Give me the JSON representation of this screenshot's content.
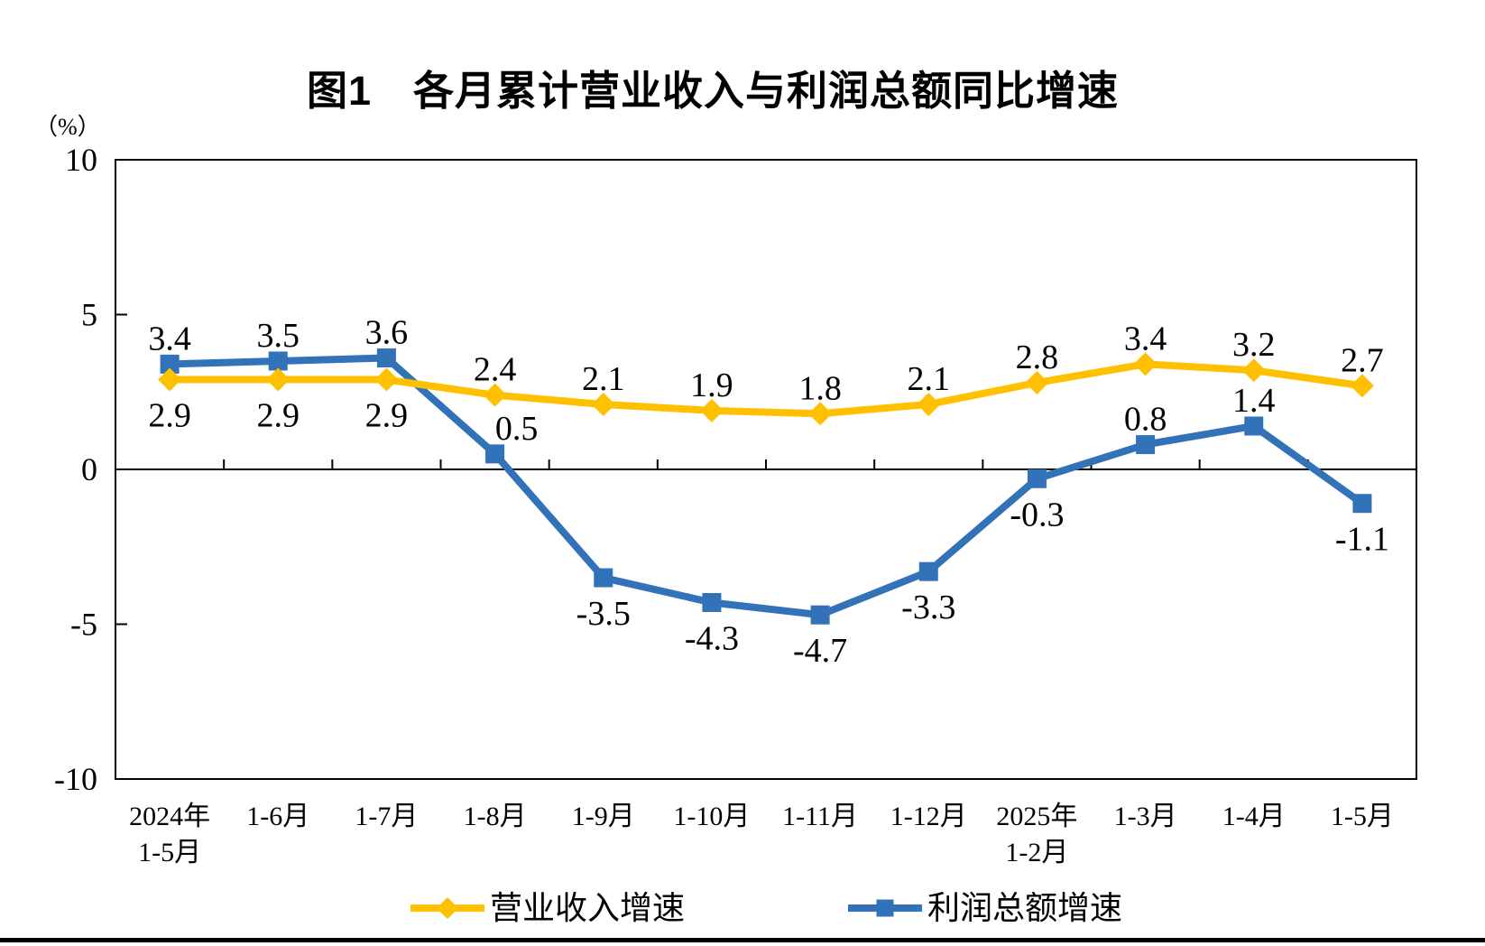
{
  "chart_data": {
    "type": "line",
    "title": "图1　各月累计营业收入与利润总额同比增速",
    "ylabel": "（%）",
    "xlabel": "",
    "ylim": [
      -10,
      10
    ],
    "yticks": [
      10,
      5,
      0,
      -5,
      -10
    ],
    "grid": false,
    "legend_position": "bottom",
    "categories": [
      [
        "2024年",
        "1-5月"
      ],
      [
        "1-6月"
      ],
      [
        "1-7月"
      ],
      [
        "1-8月"
      ],
      [
        "1-9月"
      ],
      [
        "1-10月"
      ],
      [
        "1-11月"
      ],
      [
        "1-12月"
      ],
      [
        "2025年",
        "1-2月"
      ],
      [
        "1-3月"
      ],
      [
        "1-4月"
      ],
      [
        "1-5月"
      ]
    ],
    "series": [
      {
        "name": "营业收入增速",
        "color": "#FFC000",
        "marker": "diamond",
        "values": [
          2.9,
          2.9,
          2.9,
          2.4,
          2.1,
          1.9,
          1.8,
          2.1,
          2.8,
          3.4,
          3.2,
          2.7
        ],
        "label_side": [
          "below",
          "below",
          "below",
          "above",
          "above",
          "above",
          "above",
          "above",
          "above",
          "above",
          "above",
          "above"
        ],
        "label_dx": [
          0,
          0,
          0,
          0,
          0,
          0,
          0,
          0,
          0,
          0,
          0,
          0
        ]
      },
      {
        "name": "利润总额增速",
        "color": "#3272B8",
        "marker": "square",
        "values": [
          3.4,
          3.5,
          3.6,
          0.5,
          -3.5,
          -4.3,
          -4.7,
          -3.3,
          -0.3,
          0.8,
          1.4,
          -1.1
        ],
        "label_side": [
          "above",
          "above",
          "above",
          "above",
          "below",
          "below",
          "below",
          "below",
          "below",
          "above",
          "above",
          "below"
        ],
        "label_dx": [
          0,
          0,
          0,
          24,
          0,
          0,
          0,
          0,
          0,
          0,
          0,
          0
        ]
      }
    ]
  }
}
